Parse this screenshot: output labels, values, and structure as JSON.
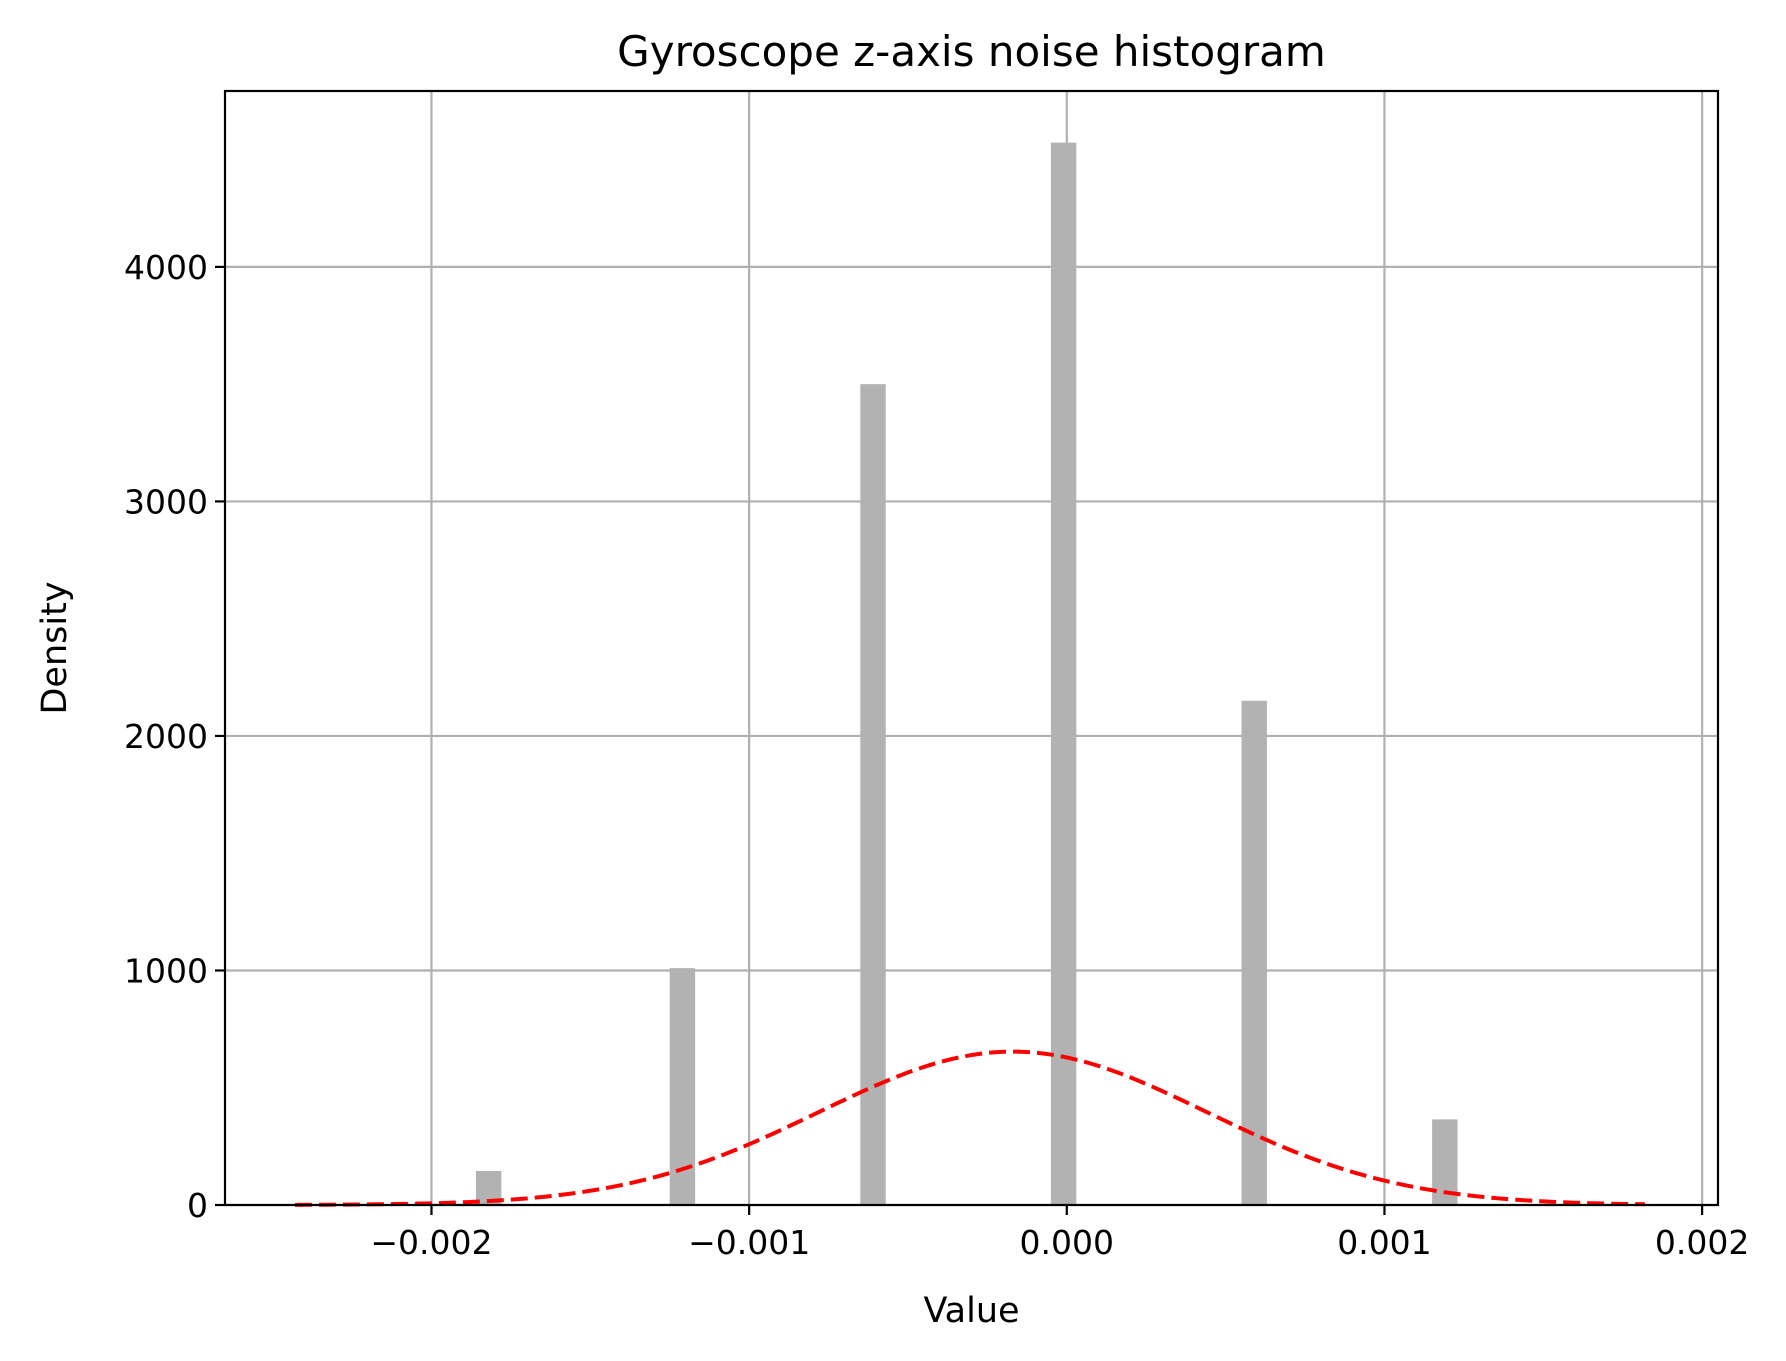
{
  "chart_data": {
    "type": "bar",
    "title": "Gyroscope z-axis noise histogram",
    "xlabel": "Value",
    "ylabel": "Density",
    "xlim": [
      -0.00265,
      0.00205
    ],
    "ylim": [
      0,
      4750
    ],
    "grid": true,
    "x_ticks": [
      -0.002,
      -0.001,
      0.0,
      0.001,
      0.002
    ],
    "x_tick_labels": [
      "−0.002",
      "−0.001",
      "0.000",
      "0.001",
      "0.002"
    ],
    "y_ticks": [
      0,
      1000,
      2000,
      3000,
      4000
    ],
    "y_tick_labels": [
      "0",
      "1000",
      "2000",
      "3000",
      "4000"
    ],
    "bar_width": 8e-05,
    "bars": [
      {
        "x": -0.00182,
        "value": 145
      },
      {
        "x": -0.00121,
        "value": 1010
      },
      {
        "x": -0.00061,
        "value": 3500
      },
      {
        "x": -1e-05,
        "value": 4530
      },
      {
        "x": 0.00059,
        "value": 2150
      },
      {
        "x": 0.00119,
        "value": 365
      }
    ],
    "series": [
      {
        "type": "line",
        "style": "dashed",
        "color": "#ff0000",
        "mean": -0.00017,
        "std": 0.00061,
        "x_range": [
          -0.00243,
          0.00182
        ]
      }
    ],
    "colors": {
      "bars": "#b2b2b2",
      "fit": "#ff0000",
      "grid": "#b0b0b0"
    }
  }
}
